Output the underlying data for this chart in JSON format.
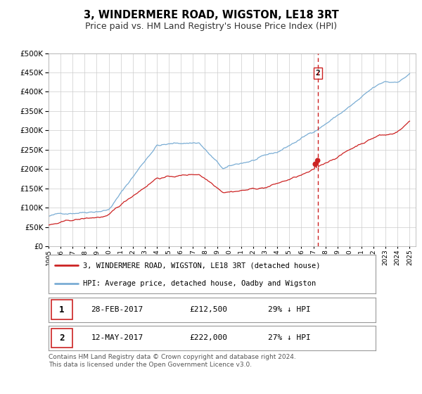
{
  "title": "3, WINDERMERE ROAD, WIGSTON, LE18 3RT",
  "subtitle": "Price paid vs. HM Land Registry's House Price Index (HPI)",
  "title_fontsize": 10.5,
  "subtitle_fontsize": 9,
  "hpi_color": "#7aadd4",
  "price_color": "#cc2222",
  "vline_color": "#cc2222",
  "background_color": "#ffffff",
  "grid_color": "#cccccc",
  "ylim": [
    0,
    500000
  ],
  "yticks": [
    0,
    50000,
    100000,
    150000,
    200000,
    250000,
    300000,
    350000,
    400000,
    450000,
    500000
  ],
  "transaction1": {
    "date": "28-FEB-2017",
    "price": "£212,500",
    "label": "1",
    "pct": "29% ↓ HPI",
    "year": 2017.16
  },
  "transaction2": {
    "date": "12-MAY-2017",
    "price": "£222,000",
    "label": "2",
    "pct": "27% ↓ HPI",
    "year": 2017.36
  },
  "transaction1_val": 212500,
  "transaction2_val": 222000,
  "legend_label_red": "3, WINDERMERE ROAD, WIGSTON, LE18 3RT (detached house)",
  "legend_label_blue": "HPI: Average price, detached house, Oadby and Wigston",
  "footnote": "Contains HM Land Registry data © Crown copyright and database right 2024.\nThis data is licensed under the Open Government Licence v3.0.",
  "footnote_fontsize": 6.5,
  "xstart": 1995,
  "xend": 2025
}
